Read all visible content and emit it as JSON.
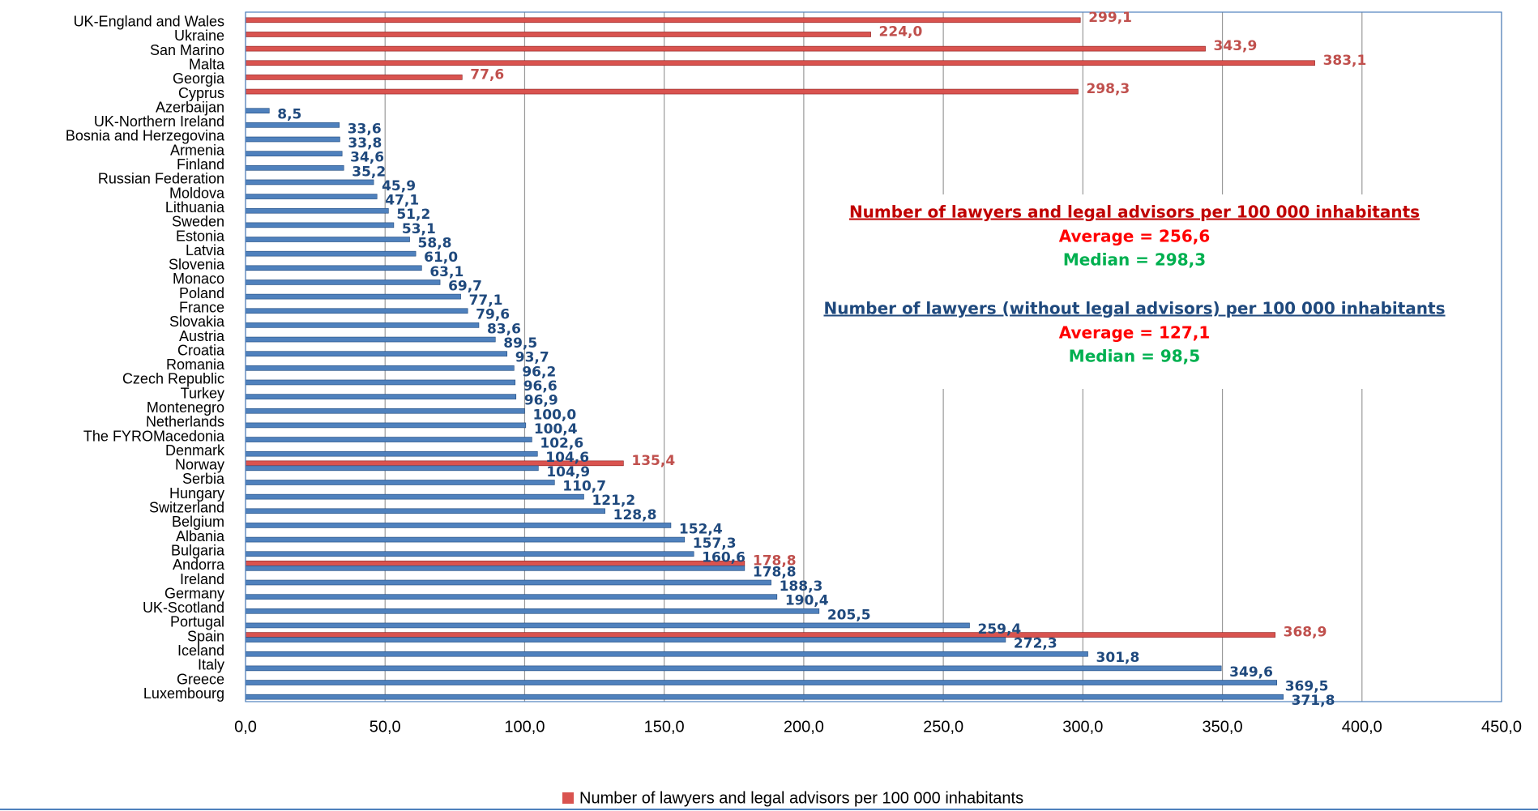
{
  "chart_data": {
    "type": "bar",
    "orientation": "horizontal",
    "categories": [
      "UK-England and Wales",
      "Ukraine",
      "San Marino",
      "Malta",
      "Georgia",
      "Cyprus",
      "Azerbaijan",
      "UK-Northern Ireland",
      "Bosnia and Herzegovina",
      "Armenia",
      "Finland",
      "Russian Federation",
      "Moldova",
      "Lithuania",
      "Sweden",
      "Estonia",
      "Latvia",
      "Slovenia",
      "Monaco",
      "Poland",
      "France",
      "Slovakia",
      "Austria",
      "Croatia",
      "Romania",
      "Czech Republic",
      "Turkey",
      "Montenegro",
      "Netherlands",
      "The FYROMacedonia",
      "Denmark",
      "Norway",
      "Serbia",
      "Hungary",
      "Switzerland",
      "Belgium",
      "Albania",
      "Bulgaria",
      "Andorra",
      "Ireland",
      "Germany",
      "UK-Scotland",
      "Portugal",
      "Spain",
      "Iceland",
      "Italy",
      "Greece",
      "Luxembourg"
    ],
    "series": [
      {
        "name": "Number of lawyers and legal advisors per 100 000 inhabitants",
        "color": "#d9534f",
        "label_color": "#c0504d",
        "values": [
          299.1,
          224.0,
          343.9,
          383.1,
          77.6,
          298.3,
          null,
          null,
          null,
          null,
          null,
          null,
          null,
          null,
          null,
          null,
          null,
          null,
          null,
          null,
          null,
          null,
          null,
          null,
          null,
          null,
          null,
          null,
          null,
          null,
          null,
          135.4,
          null,
          null,
          null,
          null,
          null,
          null,
          178.8,
          null,
          null,
          null,
          null,
          368.9,
          null,
          null,
          null,
          null
        ],
        "value_labels": [
          "299,1",
          "224,0",
          "343,9",
          "383,1",
          "77,6",
          "298,3",
          null,
          null,
          null,
          null,
          null,
          null,
          null,
          null,
          null,
          null,
          null,
          null,
          null,
          null,
          null,
          null,
          null,
          null,
          null,
          null,
          null,
          null,
          null,
          null,
          null,
          "135,4",
          null,
          null,
          null,
          null,
          null,
          null,
          "178,8",
          null,
          null,
          null,
          null,
          "368,9",
          null,
          null,
          null,
          null
        ]
      },
      {
        "name": "Number of lawyers (without legal advisors) per 100 000 inhabitants",
        "color": "#4f81bd",
        "label_color": "#1f497d",
        "values": [
          null,
          null,
          null,
          null,
          null,
          null,
          8.5,
          33.6,
          33.8,
          34.6,
          35.2,
          45.9,
          47.1,
          51.2,
          53.1,
          58.8,
          61.0,
          63.1,
          69.7,
          77.1,
          79.6,
          83.6,
          89.5,
          93.7,
          96.2,
          96.6,
          96.9,
          100.0,
          100.4,
          102.6,
          104.6,
          104.9,
          110.7,
          121.2,
          128.8,
          152.4,
          157.3,
          160.6,
          178.8,
          188.3,
          190.4,
          205.5,
          259.4,
          272.3,
          301.8,
          349.6,
          369.5,
          371.8
        ],
        "value_labels": [
          null,
          null,
          null,
          null,
          null,
          null,
          "8,5",
          "33,6",
          "33,8",
          "34,6",
          "35,2",
          "45,9",
          "47,1",
          "51,2",
          "53,1",
          "58,8",
          "61,0",
          "63,1",
          "69,7",
          "77,1",
          "79,6",
          "83,6",
          "89,5",
          "93,7",
          "96,2",
          "96,6",
          "96,9",
          "100,0",
          "100,4",
          "102,6",
          "104,6",
          "104,9",
          "110,7",
          "121,2",
          "128,8",
          "152,4",
          "157,3",
          "160,6",
          "178,8",
          "188,3",
          "190,4",
          "205,5",
          "259,4",
          "272,3",
          "301,8",
          "349,6",
          "369,5",
          "371,8"
        ]
      }
    ],
    "xlim": [
      0,
      450
    ],
    "xticks": [
      {
        "value": 0,
        "label": "0,0"
      },
      {
        "value": 50,
        "label": "50,0"
      },
      {
        "value": 100,
        "label": "100,0"
      },
      {
        "value": 150,
        "label": "150,0"
      },
      {
        "value": 200,
        "label": "200,0"
      },
      {
        "value": 250,
        "label": "250,0"
      },
      {
        "value": 300,
        "label": "300,0"
      },
      {
        "value": 350,
        "label": "350,0"
      },
      {
        "value": 400,
        "label": "400,0"
      },
      {
        "value": 450,
        "label": "450,0"
      }
    ],
    "grid": true,
    "annotations": [
      "Average = 256,6",
      "Median = 298,3",
      "Average = 127,1",
      "Median = 98,5"
    ]
  }
}
